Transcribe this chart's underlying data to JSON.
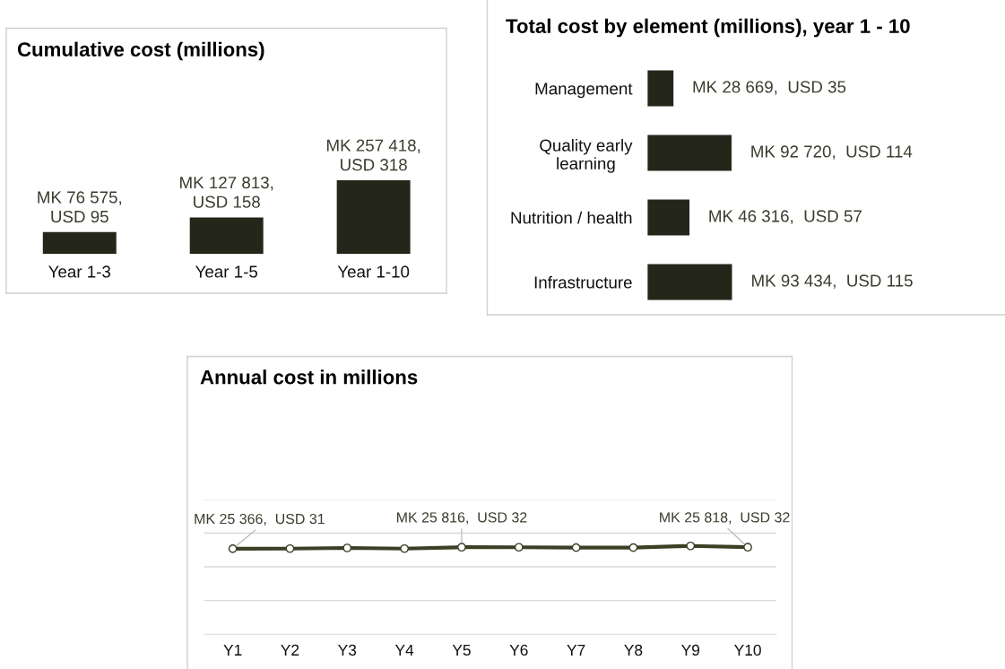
{
  "chart_data": [
    {
      "type": "bar",
      "title": "Cumulative cost (millions)",
      "categories": [
        "Year 1-3",
        "Year 1-5",
        "Year 1-10"
      ],
      "values": [
        76575,
        127813,
        257418
      ],
      "color": "#25261a",
      "value_labels": [
        "MK 76 575,\nUSD 95",
        "MK 127 813,\nUSD 158",
        "MK 257 418,\nUSD 318"
      ],
      "tick_labels": "x"
    },
    {
      "type": "bar",
      "orientation": "horizontal",
      "title": "Total cost by element (millions), year 1 - 10",
      "categories": [
        "Management",
        "Quality early\nlearning",
        "Nutrition / health",
        "Infrastructure"
      ],
      "values": [
        28669,
        92720,
        46316,
        93434
      ],
      "color": "#25261a",
      "value_labels": [
        "MK 28 669,  USD 35",
        "MK 92 720,  USD 114",
        "MK 46 316,  USD 57",
        "MK 93 434,  USD 115"
      ],
      "tick_labels": "y"
    },
    {
      "type": "line",
      "title": "Annual cost in millions",
      "categories": [
        "Y1",
        "Y2",
        "Y3",
        "Y4",
        "Y5",
        "Y6",
        "Y7",
        "Y8",
        "Y9",
        "Y10"
      ],
      "values": [
        25366,
        25400,
        25600,
        25400,
        25816,
        25800,
        25700,
        25700,
        26200,
        25818
      ],
      "color": "#3b3f24",
      "marker": "circle",
      "value_labels": [
        "MK 25 366,  USD 31",
        null,
        null,
        null,
        "MK 25 816,  USD 32",
        null,
        null,
        null,
        null,
        "MK 25 818,  USD 32"
      ],
      "ylim": [
        0,
        40000
      ],
      "yticks": [
        {
          "value": 10000,
          "label": null
        },
        {
          "value": 20000,
          "label": null
        },
        {
          "value": 30000,
          "label": null
        },
        {
          "value": 40000,
          "label": null
        }
      ],
      "grid": "y",
      "tick_labels": "x"
    }
  ]
}
